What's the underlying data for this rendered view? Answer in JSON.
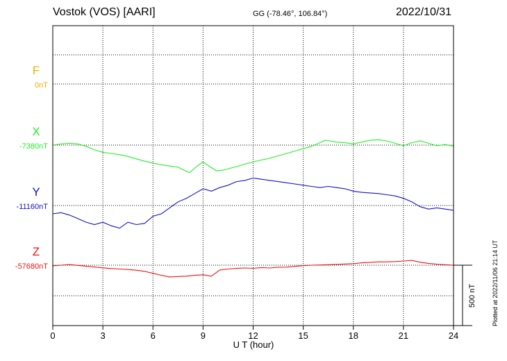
{
  "header": {
    "station": "Vostok (VOS)  [AARI]",
    "coords": "GG (-78.46°, 106.84°)",
    "date": "2022/10/31"
  },
  "footer": {
    "plotted": "Plotted at 2022/11/06 21:14 UT"
  },
  "chart_data": {
    "type": "line",
    "xlabel": "U T (hour)",
    "xlim": [
      0,
      24
    ],
    "xticks": [
      "0",
      "3",
      "6",
      "9",
      "12",
      "15",
      "18",
      "21",
      "24"
    ],
    "grid": true,
    "scale_bar": "500 nT",
    "scale_nT": 500,
    "series": [
      {
        "name": "F",
        "baseline_label": "0nT",
        "color": "#f0b000",
        "x": [],
        "values": []
      },
      {
        "name": "X",
        "baseline_label": "-7380nT",
        "color": "#22ee22",
        "x": [
          0,
          0.5,
          1,
          1.5,
          2,
          2.5,
          3,
          3.5,
          4,
          4.5,
          5,
          5.5,
          6,
          6.5,
          7,
          7.5,
          8,
          8.2,
          8.6,
          9,
          9.4,
          9.8,
          10.2,
          10.6,
          11,
          11.5,
          12,
          12.5,
          13,
          13.5,
          14,
          14.5,
          15,
          15.5,
          16,
          16.3,
          16.6,
          17,
          17.5,
          18,
          18.5,
          19,
          19.5,
          20,
          20.5,
          21,
          21.5,
          22,
          22.5,
          23,
          23.5,
          24
        ],
        "values": [
          -7380,
          -7370,
          -7365,
          -7370,
          -7390,
          -7420,
          -7440,
          -7450,
          -7460,
          -7475,
          -7495,
          -7515,
          -7530,
          -7545,
          -7555,
          -7565,
          -7600,
          -7610,
          -7560,
          -7520,
          -7560,
          -7595,
          -7590,
          -7575,
          -7560,
          -7540,
          -7520,
          -7505,
          -7490,
          -7470,
          -7450,
          -7430,
          -7410,
          -7390,
          -7360,
          -7340,
          -7345,
          -7355,
          -7360,
          -7370,
          -7355,
          -7340,
          -7335,
          -7345,
          -7365,
          -7385,
          -7360,
          -7345,
          -7365,
          -7385,
          -7375,
          -7390
        ]
      },
      {
        "name": "Y",
        "baseline_label": "-11160nT",
        "color": "#1111cc",
        "x": [
          0,
          0.5,
          1,
          1.5,
          2,
          2.5,
          3,
          3.5,
          4,
          4.5,
          5,
          5.5,
          6,
          6.5,
          7,
          7.5,
          8,
          8.5,
          9,
          9.5,
          10,
          10.5,
          11,
          11.5,
          12,
          12.5,
          13,
          13.5,
          14,
          14.5,
          15,
          15.5,
          16,
          16.5,
          17,
          17.5,
          18,
          18.5,
          19,
          19.5,
          20,
          20.5,
          21,
          21.5,
          22,
          22.5,
          23,
          23.5,
          24
        ],
        "values": [
          -11230,
          -11220,
          -11240,
          -11270,
          -11300,
          -11320,
          -11300,
          -11330,
          -11350,
          -11300,
          -11320,
          -11310,
          -11250,
          -11230,
          -11180,
          -11130,
          -11100,
          -11060,
          -11020,
          -11040,
          -11010,
          -10990,
          -10960,
          -10950,
          -10930,
          -10940,
          -10950,
          -10960,
          -10970,
          -10980,
          -10990,
          -11000,
          -11010,
          -11000,
          -11010,
          -11020,
          -11040,
          -11050,
          -11055,
          -11060,
          -11070,
          -11080,
          -11100,
          -11130,
          -11170,
          -11190,
          -11180,
          -11190,
          -11200
        ]
      },
      {
        "name": "Z",
        "baseline_label": "-57680nT",
        "color": "#ee1111",
        "x": [
          0,
          0.5,
          1,
          1.5,
          2,
          2.5,
          3,
          3.5,
          4,
          4.5,
          5,
          5.5,
          6,
          6.5,
          7,
          7.5,
          8,
          8.5,
          9,
          9.5,
          10,
          10.5,
          11,
          11.5,
          12,
          12.5,
          13,
          13.5,
          14,
          14.5,
          15,
          15.5,
          16,
          16.5,
          17,
          17.5,
          18,
          18.5,
          19,
          19.5,
          20,
          20.5,
          21,
          21.5,
          22,
          22.5,
          23,
          23.5,
          24
        ],
        "values": [
          -57685,
          -57680,
          -57675,
          -57682,
          -57688,
          -57695,
          -57702,
          -57708,
          -57712,
          -57716,
          -57722,
          -57732,
          -57748,
          -57765,
          -57778,
          -57775,
          -57772,
          -57765,
          -57760,
          -57772,
          -57720,
          -57712,
          -57707,
          -57703,
          -57706,
          -57700,
          -57703,
          -57697,
          -57696,
          -57690,
          -57684,
          -57680,
          -57678,
          -57676,
          -57673,
          -57670,
          -57667,
          -57660,
          -57656,
          -57652,
          -57652,
          -57650,
          -57645,
          -57640,
          -57655,
          -57665,
          -57672,
          -57676,
          -57680
        ]
      }
    ]
  }
}
